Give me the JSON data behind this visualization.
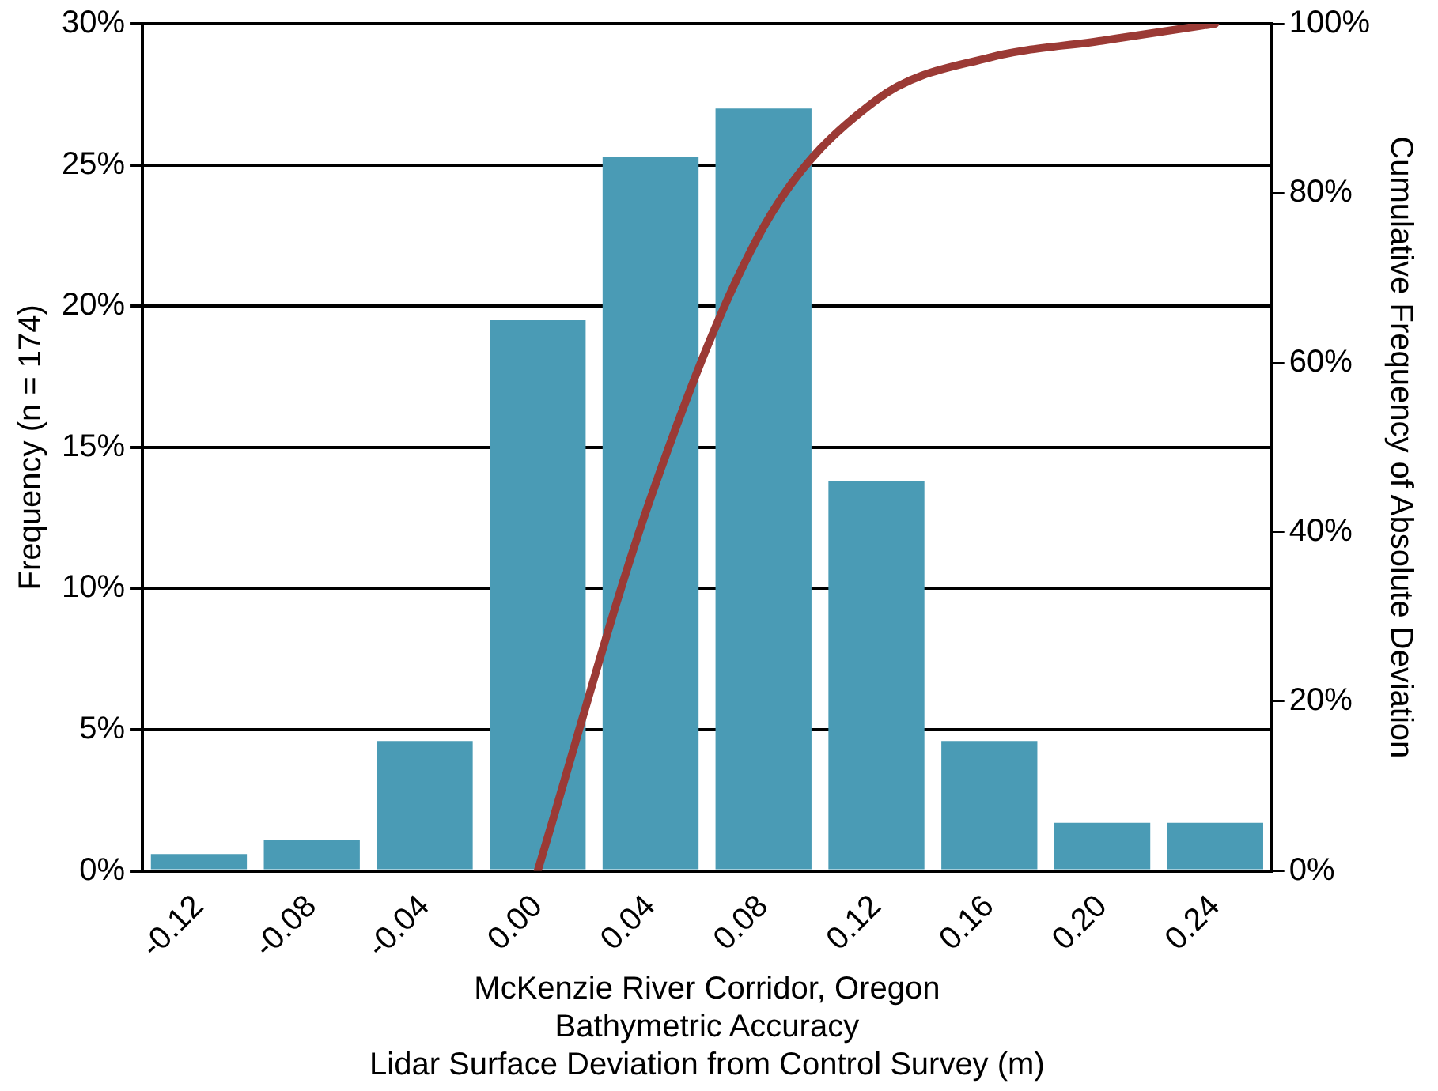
{
  "chart_data": {
    "type": "bar",
    "ylabel": "Frequency (n = 174)",
    "y2label": "Cumulative Frequency of Absolute Deviation",
    "xlabel": "McKenzie River Corridor, Oregon\nBathymetric Accuracy\nLidar Surface Deviation from Control Survey (m)",
    "categories": [
      "-0.12",
      "-0.08",
      "-0.04",
      "0.00",
      "0.04",
      "0.08",
      "0.12",
      "0.16",
      "0.20",
      "0.24"
    ],
    "series": [
      {
        "color": "#4a9bb5",
        "values": [
          0.6,
          1.1,
          4.6,
          19.5,
          25.3,
          27.0,
          13.8,
          4.6,
          1.7,
          1.7
        ]
      },
      {
        "type": "line",
        "axis": "y2",
        "color": "#9b3a35",
        "values": [
          null,
          null,
          null,
          0,
          44,
          76,
          91,
          96,
          98,
          100
        ]
      }
    ],
    "ylim": [
      0,
      30
    ],
    "yticks": [
      {
        "value": 0,
        "label": "0%"
      },
      {
        "value": 5,
        "label": "5%"
      },
      {
        "value": 10,
        "label": "10%"
      },
      {
        "value": 15,
        "label": "15%"
      },
      {
        "value": 20,
        "label": "20%"
      },
      {
        "value": 25,
        "label": "25%"
      },
      {
        "value": 30,
        "label": "30%"
      }
    ],
    "y2lim": [
      0,
      100
    ],
    "y2ticks": [
      {
        "value": 0,
        "label": "0%"
      },
      {
        "value": 20,
        "label": "20%"
      },
      {
        "value": 40,
        "label": "40%"
      },
      {
        "value": 60,
        "label": "60%"
      },
      {
        "value": 80,
        "label": "80%"
      },
      {
        "value": 100,
        "label": "100%"
      }
    ],
    "grid": "y",
    "legend": false,
    "marker": "none",
    "line_style": "solid"
  }
}
